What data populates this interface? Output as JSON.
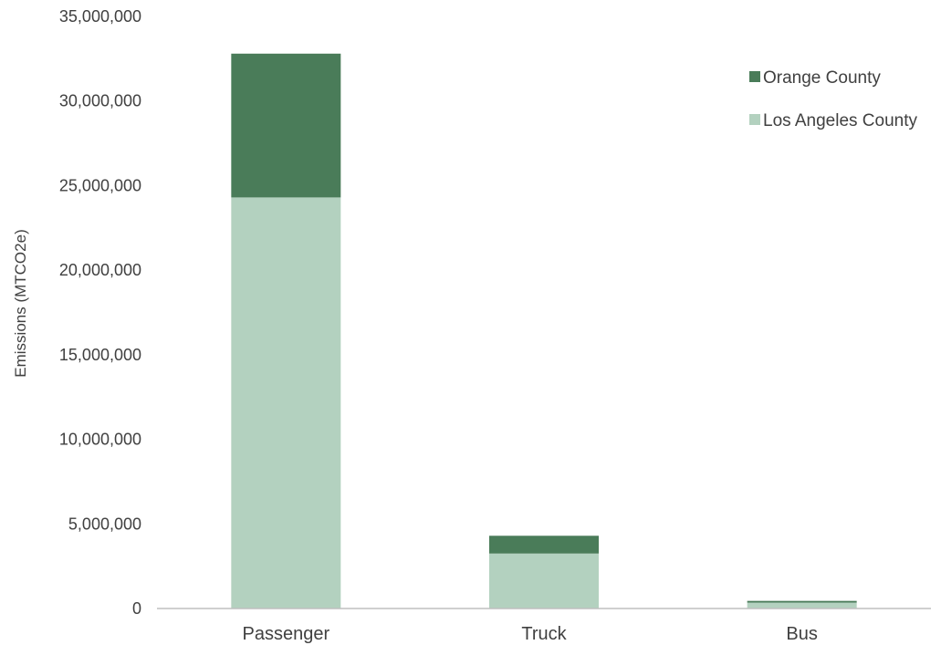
{
  "chart_data": {
    "type": "bar",
    "stacked": true,
    "title": "",
    "xlabel": "",
    "ylabel": "Emissions (MTCO2e)",
    "categories": [
      "Passenger",
      "Truck",
      "Bus"
    ],
    "series": [
      {
        "name": "Los Angeles County",
        "color": "#b3d1bf",
        "values": [
          24300000,
          3250000,
          350000
        ]
      },
      {
        "name": "Orange County",
        "color": "#4a7c59",
        "values": [
          8500000,
          1050000,
          100000
        ]
      }
    ],
    "ylim": [
      0,
      35000000
    ],
    "yticks": [
      {
        "value": 0,
        "label": "0"
      },
      {
        "value": 5000000,
        "label": "5,000,000"
      },
      {
        "value": 10000000,
        "label": "10,000,000"
      },
      {
        "value": 15000000,
        "label": "15,000,000"
      },
      {
        "value": 20000000,
        "label": "20,000,000"
      },
      {
        "value": 25000000,
        "label": "25,000,000"
      },
      {
        "value": 30000000,
        "label": "30,000,000"
      },
      {
        "value": 35000000,
        "label": "35,000,000"
      }
    ],
    "grid": false,
    "legend_position": "top-right",
    "legend_order": [
      "Orange County",
      "Los Angeles County"
    ]
  }
}
